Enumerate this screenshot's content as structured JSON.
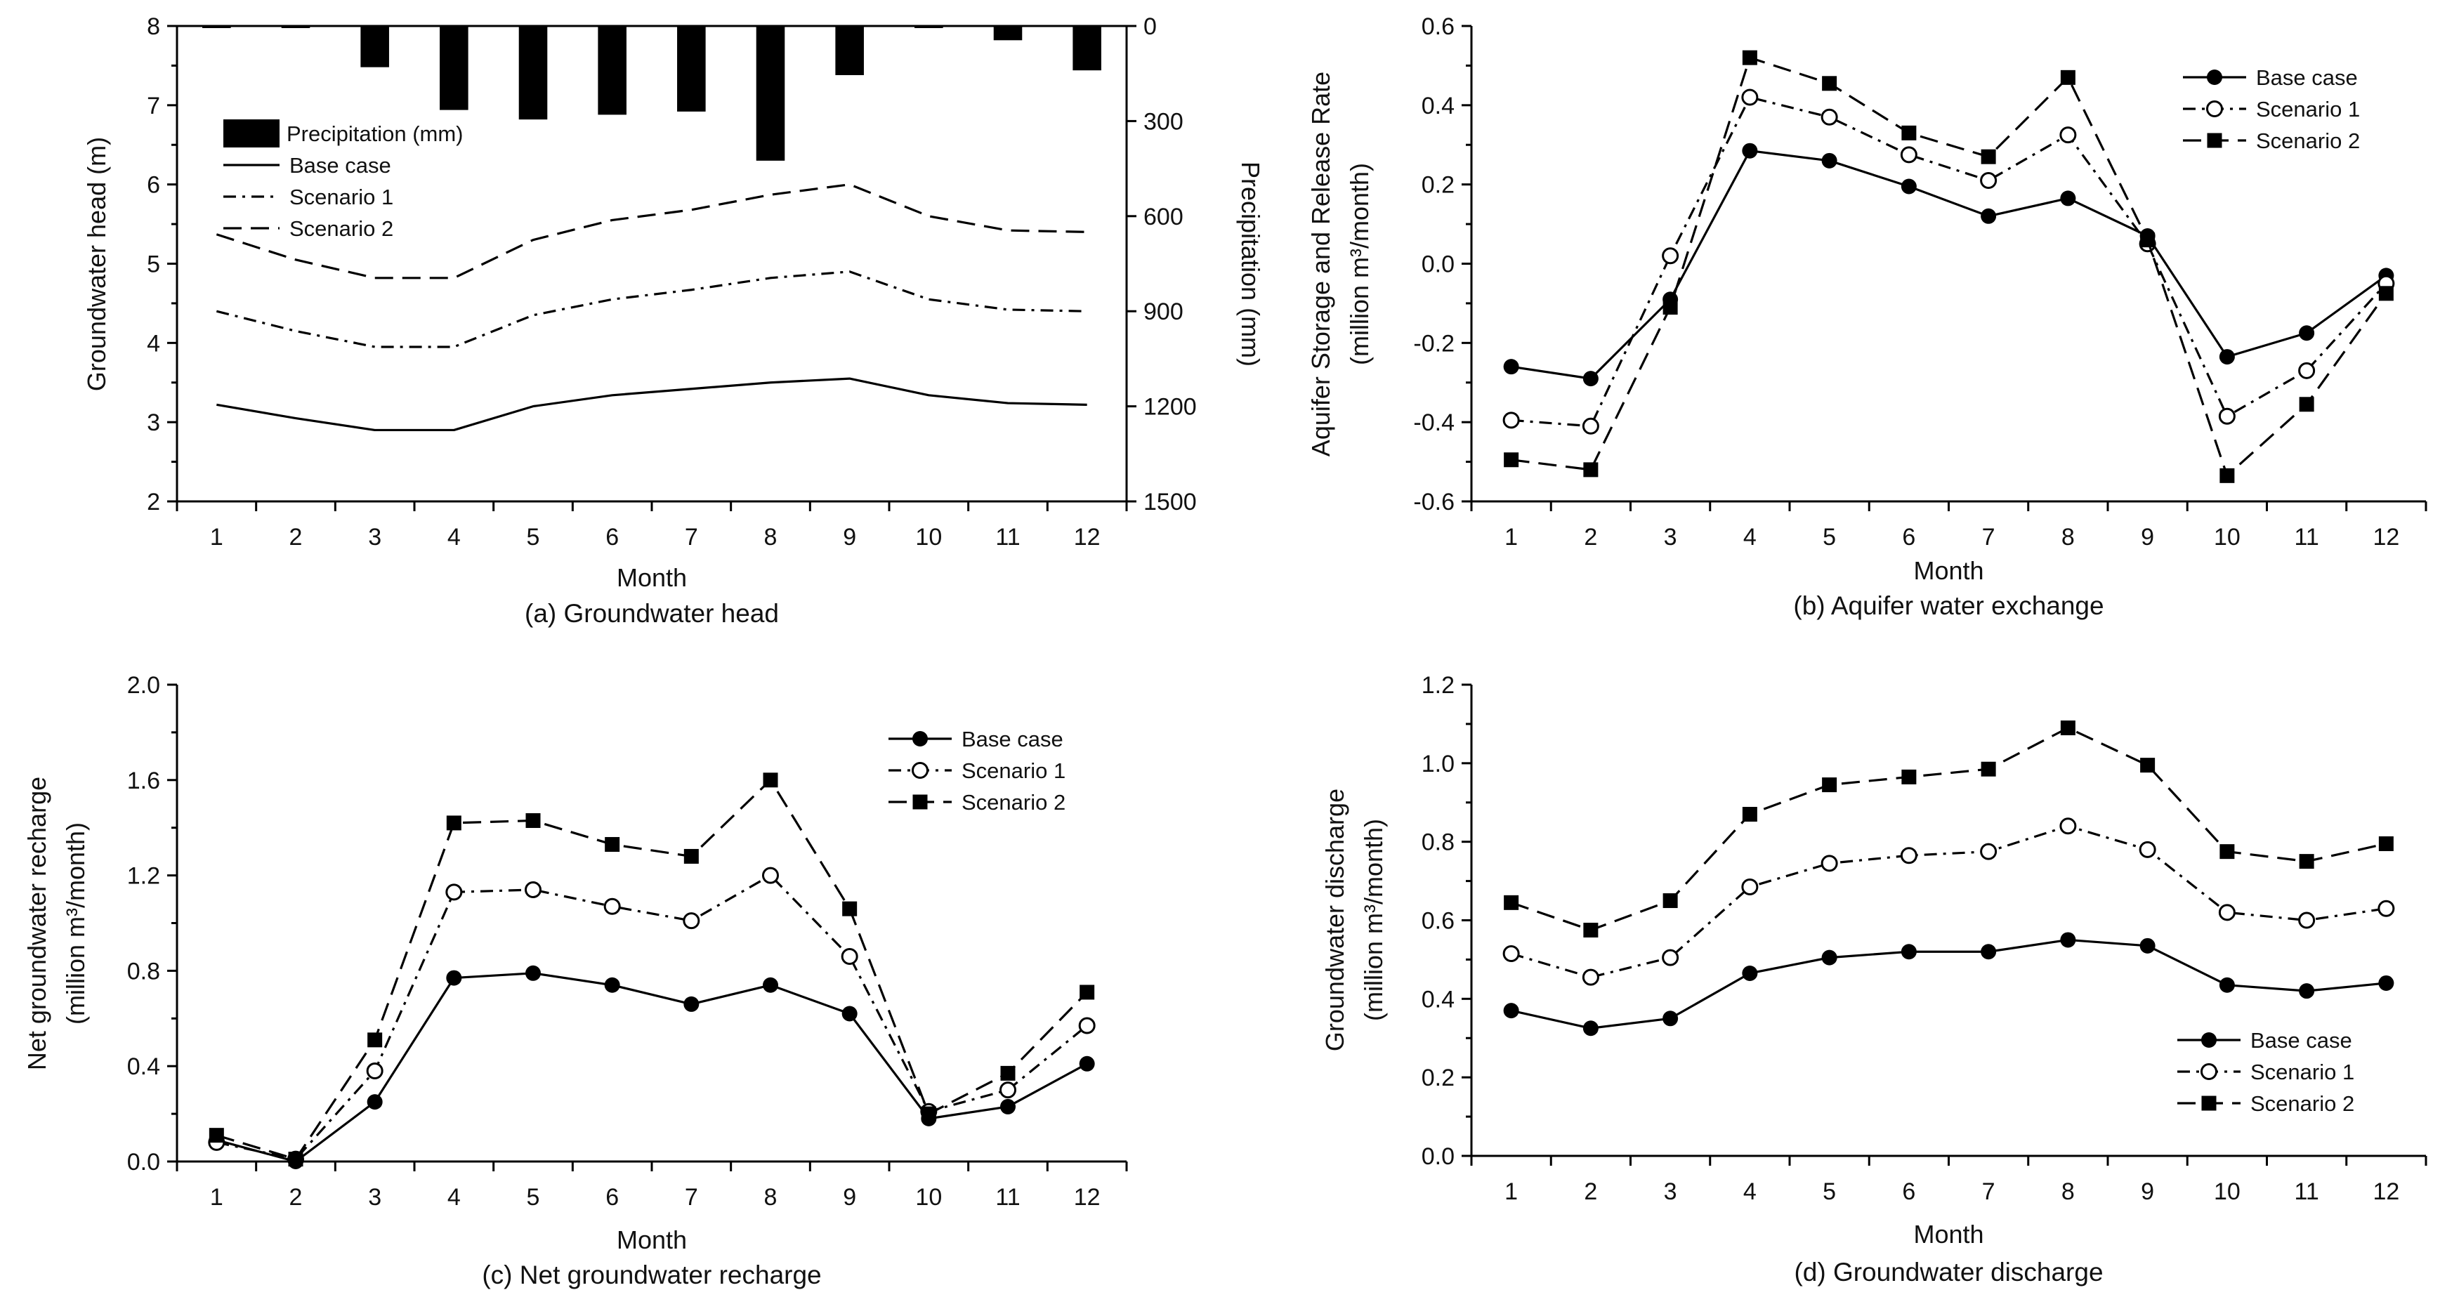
{
  "chart_data": [
    {
      "id": "a",
      "type": "line",
      "caption": "(a) Groundwater head",
      "xlabel": "Month",
      "ylabel": "Groundwater head (m)",
      "y2label": "Precipitation (mm)",
      "categories": [
        "1",
        "2",
        "3",
        "4",
        "5",
        "6",
        "7",
        "8",
        "9",
        "10",
        "11",
        "12"
      ],
      "ylim": [
        2,
        8
      ],
      "yticks": [
        "2",
        "3",
        "4",
        "5",
        "6",
        "7",
        "8"
      ],
      "y2lim": [
        0,
        1500
      ],
      "y2ticks": [
        "0",
        "300",
        "600",
        "900",
        "1200",
        "1500"
      ],
      "legend_position": "top-left",
      "bars": {
        "name": "Precipitation (mm)",
        "axis": "right",
        "values": [
          3,
          0,
          130,
          265,
          295,
          280,
          270,
          425,
          155,
          5,
          45,
          140
        ]
      },
      "series": [
        {
          "name": "Base case",
          "style": "solid",
          "values": [
            3.22,
            3.05,
            2.9,
            2.9,
            3.2,
            3.34,
            3.42,
            3.5,
            3.55,
            3.34,
            3.24,
            3.22
          ]
        },
        {
          "name": "Scenario 1",
          "style": "dashdot",
          "values": [
            4.4,
            4.15,
            3.95,
            3.95,
            4.35,
            4.55,
            4.67,
            4.82,
            4.9,
            4.55,
            4.42,
            4.4
          ]
        },
        {
          "name": "Scenario 2",
          "style": "dashed",
          "values": [
            5.37,
            5.05,
            4.82,
            4.82,
            5.3,
            5.55,
            5.68,
            5.87,
            6.0,
            5.6,
            5.42,
            5.4
          ]
        }
      ]
    },
    {
      "id": "b",
      "type": "line",
      "caption": "(b) Aquifer water exchange",
      "xlabel": "Month",
      "ylabel": "Aquifer Storage and Release Rate",
      "ylabel2": "(million m³/month)",
      "categories": [
        "1",
        "2",
        "3",
        "4",
        "5",
        "6",
        "7",
        "8",
        "9",
        "10",
        "11",
        "12"
      ],
      "ylim": [
        -0.6,
        0.6
      ],
      "yticks": [
        "-0.6",
        "-0.4",
        "-0.2",
        "0.0",
        "0.2",
        "0.4",
        "0.6"
      ],
      "legend_position": "top-right",
      "series": [
        {
          "name": "Base case",
          "style": "solid",
          "marker": "filled-circle",
          "values": [
            -0.26,
            -0.29,
            -0.09,
            0.285,
            0.26,
            0.195,
            0.12,
            0.165,
            0.07,
            -0.235,
            -0.175,
            -0.03
          ]
        },
        {
          "name": "Scenario 1",
          "style": "dashdot",
          "marker": "open-circle",
          "values": [
            -0.395,
            -0.41,
            0.02,
            0.42,
            0.37,
            0.275,
            0.21,
            0.325,
            0.05,
            -0.385,
            -0.27,
            -0.05
          ]
        },
        {
          "name": "Scenario 2",
          "style": "dashed",
          "marker": "filled-square",
          "values": [
            -0.495,
            -0.52,
            -0.11,
            0.52,
            0.455,
            0.33,
            0.27,
            0.47,
            0.06,
            -0.535,
            -0.355,
            -0.075
          ]
        }
      ]
    },
    {
      "id": "c",
      "type": "line",
      "caption": "(c) Net groundwater recharge",
      "xlabel": "Month",
      "ylabel": "Net groundwater recharge",
      "ylabel2": "(million m³/month)",
      "categories": [
        "1",
        "2",
        "3",
        "4",
        "5",
        "6",
        "7",
        "8",
        "9",
        "10",
        "11",
        "12"
      ],
      "ylim": [
        0.0,
        2.0
      ],
      "yticks": [
        "0.0",
        "0.4",
        "0.8",
        "1.2",
        "1.6",
        "2.0"
      ],
      "legend_position": "top-right",
      "series": [
        {
          "name": "Base case",
          "style": "solid",
          "marker": "filled-circle",
          "values": [
            0.09,
            0.0,
            0.25,
            0.77,
            0.79,
            0.74,
            0.66,
            0.74,
            0.62,
            0.18,
            0.23,
            0.41
          ]
        },
        {
          "name": "Scenario 1",
          "style": "dashdot",
          "marker": "open-circle",
          "values": [
            0.08,
            0.01,
            0.38,
            1.13,
            1.14,
            1.07,
            1.01,
            1.2,
            0.86,
            0.21,
            0.3,
            0.57
          ]
        },
        {
          "name": "Scenario 2",
          "style": "dashed",
          "marker": "filled-square",
          "values": [
            0.11,
            0.01,
            0.51,
            1.42,
            1.43,
            1.33,
            1.28,
            1.6,
            1.06,
            0.2,
            0.37,
            0.71
          ]
        }
      ]
    },
    {
      "id": "d",
      "type": "line",
      "caption": "(d) Groundwater discharge",
      "xlabel": "Month",
      "ylabel": "Groundwater discharge",
      "ylabel2": "(million m³/month)",
      "categories": [
        "1",
        "2",
        "3",
        "4",
        "5",
        "6",
        "7",
        "8",
        "9",
        "10",
        "11",
        "12"
      ],
      "ylim": [
        0.0,
        1.2
      ],
      "yticks": [
        "0.0",
        "0.2",
        "0.4",
        "0.6",
        "0.8",
        "1.0",
        "1.2"
      ],
      "legend_position": "bottom-right",
      "series": [
        {
          "name": "Base case",
          "style": "solid",
          "marker": "filled-circle",
          "values": [
            0.37,
            0.325,
            0.35,
            0.465,
            0.505,
            0.52,
            0.52,
            0.55,
            0.535,
            0.435,
            0.42,
            0.44
          ]
        },
        {
          "name": "Scenario 1",
          "style": "dashdot",
          "marker": "open-circle",
          "values": [
            0.515,
            0.455,
            0.505,
            0.685,
            0.745,
            0.765,
            0.775,
            0.84,
            0.78,
            0.62,
            0.6,
            0.63
          ]
        },
        {
          "name": "Scenario 2",
          "style": "dashed",
          "marker": "filled-square",
          "values": [
            0.645,
            0.575,
            0.65,
            0.87,
            0.945,
            0.965,
            0.985,
            1.09,
            0.995,
            0.775,
            0.75,
            0.795
          ]
        }
      ]
    }
  ]
}
